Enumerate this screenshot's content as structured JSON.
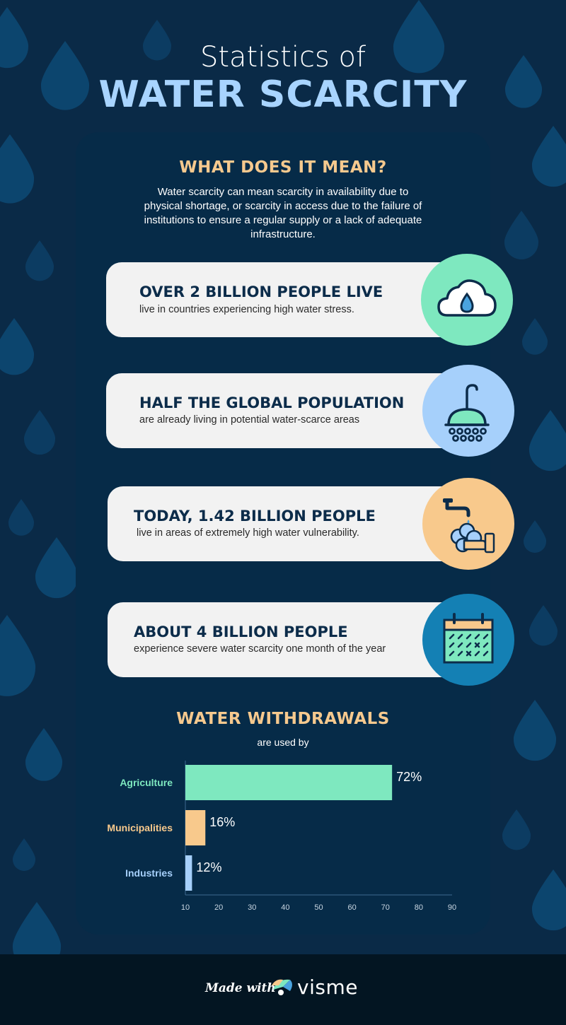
{
  "header": {
    "title_top": "Statistics of",
    "title_main": "WATER SCARCITY"
  },
  "intro": {
    "heading": "WHAT DOES IT MEAN?",
    "text": "Water scarcity can mean scarcity in availability due to physical shortage, or scarcity in access due to the failure of institutions to ensure a regular supply or a lack of adequate infrastructure."
  },
  "facts": [
    {
      "title": "OVER 2 BILLION PEOPLE LIVE",
      "text": "live in countries experiencing high water stress.",
      "icon": "cloud-water-drop-icon",
      "color": "#7ee8bf"
    },
    {
      "title": "HALF THE GLOBAL POPULATION",
      "text": "are already living in potential water-scarce areas",
      "icon": "shower-head-icon",
      "color": "#a6d0fb"
    },
    {
      "title": "TODAY, 1.42 BILLION PEOPLE",
      "text": "live in areas of extremely high water vulnerability.",
      "icon": "faucet-hand-washing-icon",
      "color": "#f8c98c"
    },
    {
      "title": "ABOUT 4 BILLION PEOPLE",
      "text": "experience severe water scarcity one month of the year",
      "icon": "calendar-icon",
      "color": "#1480b4"
    }
  ],
  "withdrawals": {
    "heading": "WATER WITHDRAWALS",
    "subheading": "are used by"
  },
  "chart_data": {
    "type": "bar",
    "orientation": "horizontal",
    "categories": [
      "Agriculture",
      "Municipalities",
      "Industries"
    ],
    "values": [
      72,
      16,
      12
    ],
    "value_labels": [
      "72%",
      "16%",
      "12%"
    ],
    "colors": [
      "#7ee8bf",
      "#f8c98c",
      "#a6d0fb"
    ],
    "xlim": [
      10,
      90
    ],
    "xticks": [
      10,
      20,
      30,
      40,
      50,
      60,
      70,
      80,
      90
    ],
    "grid": false
  },
  "footer": {
    "made_with": "Made with",
    "brand": "visme"
  },
  "colors": {
    "background": "#0a2a47",
    "panel": "#062b48",
    "accent": "#f6c98e",
    "title_blue": "#a8d4ff",
    "drop": "#0d4a75"
  }
}
